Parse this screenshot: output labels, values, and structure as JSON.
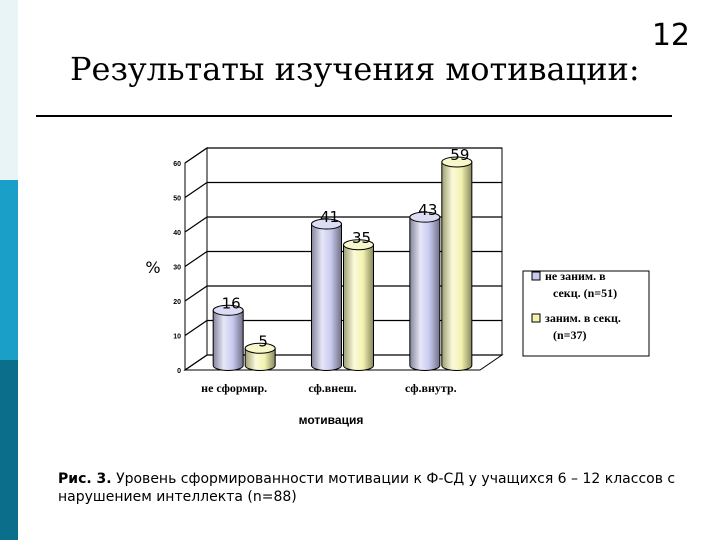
{
  "slide": {
    "number": "12",
    "title": "Результаты изучения мотивации:"
  },
  "caption": {
    "prefix": "Рис. 3.",
    "text": "Уровень сформированности мотивации к Ф-СД у учащихся 6 – 12 классов с нарушением интеллекта (n=88)"
  },
  "chart_data": {
    "type": "bar",
    "categories": [
      "не сформир.",
      "сф.внеш.",
      "сф.внутр."
    ],
    "series": [
      {
        "name": "не заним. в секц. (n=51)",
        "values": [
          16,
          41,
          43
        ],
        "color": "#c9c9ef"
      },
      {
        "name": "заним. в секц. (n=37)",
        "values": [
          5,
          35,
          59
        ],
        "color": "#f3f3b0"
      }
    ],
    "ylabel": "%",
    "xlabel": "мотивация",
    "ylim": [
      0,
      60
    ],
    "yticks": [
      0,
      10,
      20,
      30,
      40,
      50,
      60
    ],
    "grid": true,
    "legend": "right"
  }
}
